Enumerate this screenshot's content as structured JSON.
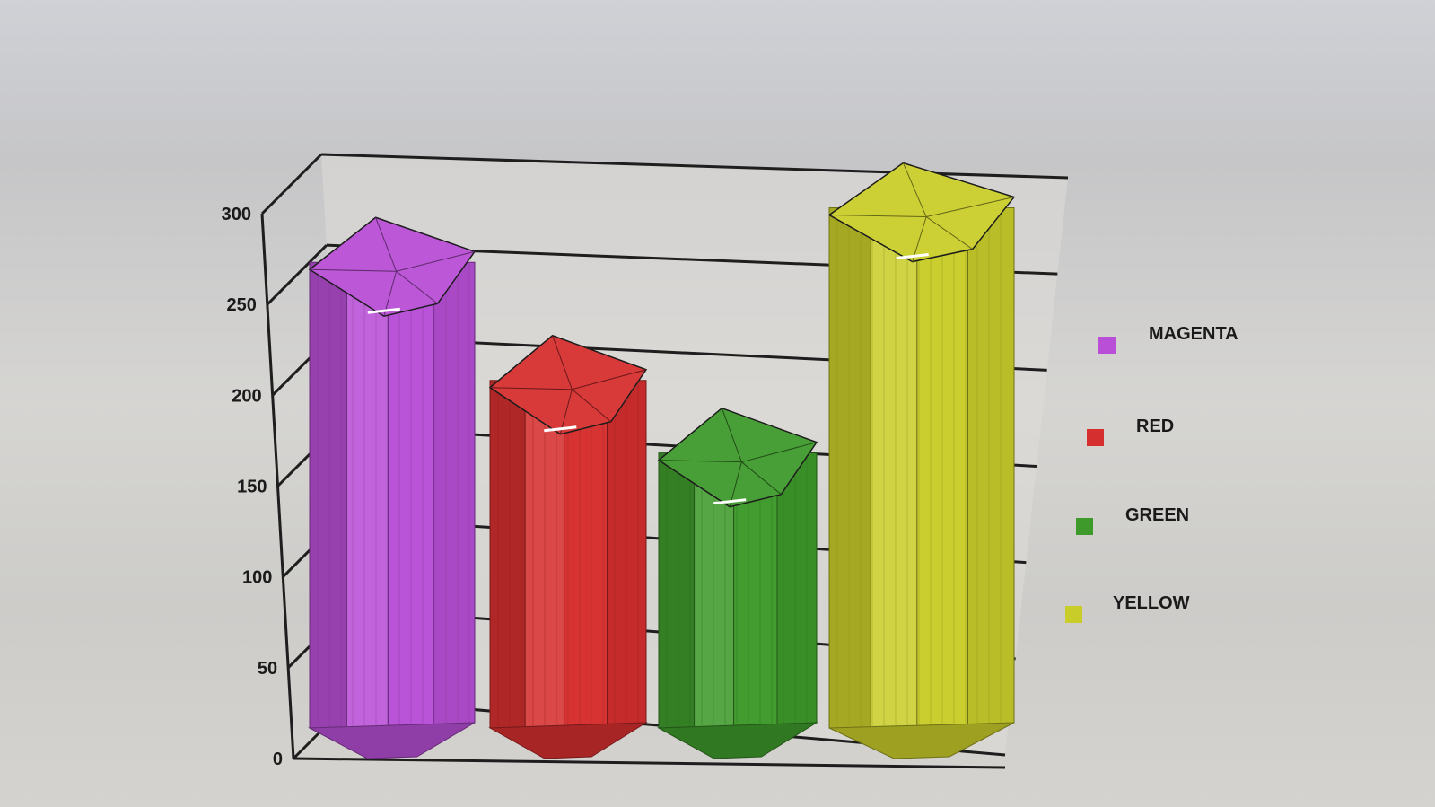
{
  "window": {
    "title": ""
  },
  "chart_data": {
    "type": "bar",
    "style": "3d-pentagonal-columns",
    "title": "",
    "xlabel": "",
    "ylabel": "",
    "categories": [
      "MAGENTA",
      "RED",
      "GREEN",
      "YELLOW"
    ],
    "values": [
      290,
      225,
      185,
      320
    ],
    "colors": [
      "#b84fd6",
      "#d62f2f",
      "#3f9a2c",
      "#c9cd2a"
    ],
    "ylim": [
      0,
      300
    ],
    "yticks": [
      "0",
      "50",
      "100",
      "150",
      "200",
      "250",
      "300"
    ],
    "grid": true,
    "legend": {
      "placement": "right",
      "entries": [
        "MAGENTA",
        "RED",
        "GREEN",
        "YELLOW"
      ]
    }
  }
}
